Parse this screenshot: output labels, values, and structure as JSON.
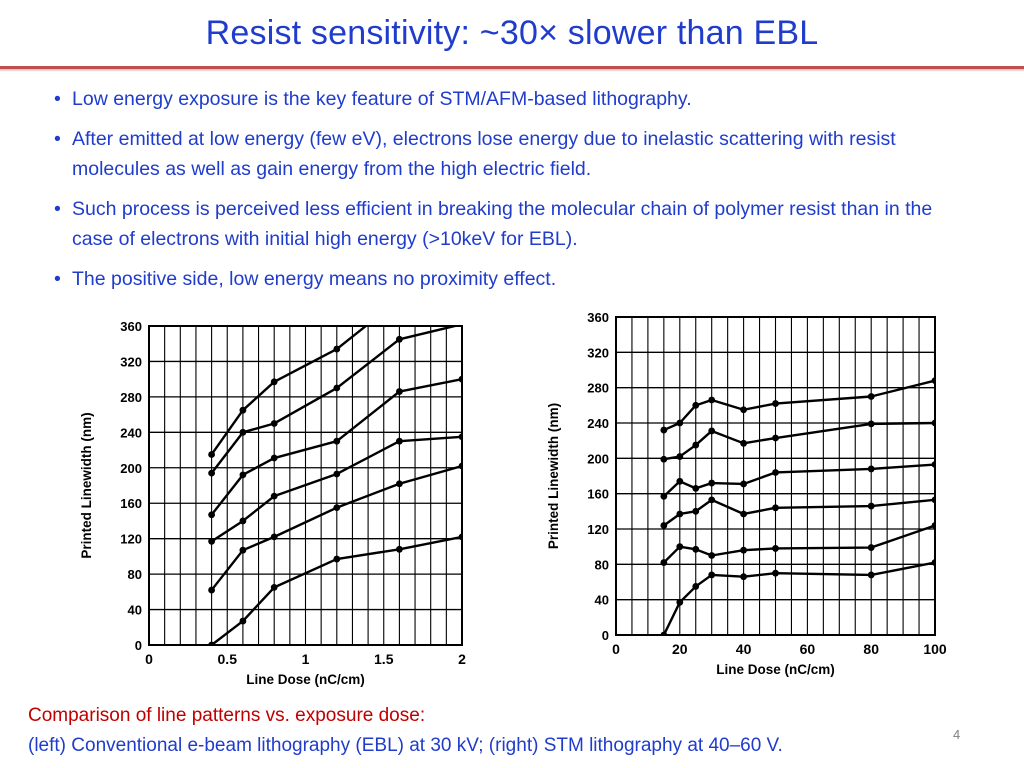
{
  "slide": {
    "title": "Resist sensitivity: ~30× slower than EBL",
    "page_number": "4",
    "accent_color": "#c0504d",
    "text_color": "#1f3ccc",
    "caption_color": "#c00000"
  },
  "bullets": [
    "Low energy exposure is the key feature of STM/AFM-based lithography.",
    "After emitted at low energy (few eV), electrons lose energy due to inelastic scattering with resist molecules as well as gain energy from the high electric field.",
    "Such process is perceived less efficient in breaking the molecular chain of polymer resist than in the case of electrons with initial high energy (>10keV for EBL).",
    "The positive side, low energy means no proximity effect."
  ],
  "caption": {
    "line1": "Comparison of line patterns vs. exposure dose:",
    "line2": "(left) Conventional e-beam lithography (EBL) at 30 kV; (right) STM lithography at 40–60 V."
  },
  "chart_data": [
    {
      "type": "line",
      "xlabel": "Line Dose (nC/cm)",
      "ylabel": "Printed Linewidth (nm)",
      "xlim": [
        0,
        2
      ],
      "ylim": [
        0,
        360
      ],
      "xticks": [
        0,
        0.5,
        1,
        1.5,
        2
      ],
      "xtick_labels": [
        "0",
        "0.5",
        "1",
        "1.5",
        "2"
      ],
      "yticks": [
        0,
        40,
        80,
        120,
        160,
        200,
        240,
        280,
        320,
        360
      ],
      "grid": true,
      "series": [
        {
          "x": [
            0.4,
            0.6,
            0.8,
            1.2,
            1.6,
            2.0
          ],
          "y": [
            0,
            27,
            65,
            97,
            108,
            122
          ]
        },
        {
          "x": [
            0.4,
            0.6,
            0.8,
            1.2,
            1.6,
            2.0
          ],
          "y": [
            62,
            107,
            122,
            155,
            182,
            202
          ]
        },
        {
          "x": [
            0.4,
            0.6,
            0.8,
            1.2,
            1.6,
            2.0
          ],
          "y": [
            117,
            140,
            168,
            193,
            230,
            235
          ]
        },
        {
          "x": [
            0.4,
            0.6,
            0.8,
            1.2,
            1.6,
            2.0
          ],
          "y": [
            147,
            192,
            211,
            230,
            286,
            300
          ]
        },
        {
          "x": [
            0.4,
            0.6,
            0.8,
            1.2,
            1.6,
            2.0
          ],
          "y": [
            194,
            240,
            250,
            290,
            345,
            362
          ]
        },
        {
          "x": [
            0.4,
            0.6,
            0.8,
            1.2,
            1.4
          ],
          "y": [
            215,
            265,
            297,
            334,
            362
          ]
        }
      ]
    },
    {
      "type": "line",
      "xlabel": "Line Dose (nC/cm)",
      "ylabel": "Printed Linewidth (nm)",
      "xlim": [
        0,
        100
      ],
      "ylim": [
        0,
        360
      ],
      "xticks": [
        0,
        20,
        40,
        60,
        80,
        100
      ],
      "xtick_labels": [
        "0",
        "20",
        "40",
        "60",
        "80",
        "100"
      ],
      "yticks": [
        0,
        40,
        80,
        120,
        160,
        200,
        240,
        280,
        320,
        360
      ],
      "grid": true,
      "series": [
        {
          "x": [
            15,
            20,
            25,
            30,
            40,
            50,
            80,
            100
          ],
          "y": [
            0,
            37,
            55,
            68,
            66,
            70,
            68,
            82
          ]
        },
        {
          "x": [
            15,
            20,
            25,
            30,
            40,
            50,
            80,
            100
          ],
          "y": [
            82,
            100,
            97,
            90,
            96,
            98,
            99,
            124
          ]
        },
        {
          "x": [
            15,
            20,
            25,
            30,
            40,
            50,
            80,
            100
          ],
          "y": [
            124,
            137,
            140,
            153,
            137,
            144,
            146,
            153
          ]
        },
        {
          "x": [
            15,
            20,
            25,
            30,
            40,
            50,
            80,
            100
          ],
          "y": [
            157,
            174,
            166,
            172,
            171,
            184,
            188,
            193
          ]
        },
        {
          "x": [
            15,
            20,
            25,
            30,
            40,
            50,
            80,
            100
          ],
          "y": [
            199,
            202,
            215,
            231,
            217,
            223,
            239,
            240
          ]
        },
        {
          "x": [
            15,
            20,
            25,
            30,
            40,
            50,
            80,
            100
          ],
          "y": [
            232,
            240,
            260,
            266,
            255,
            262,
            270,
            288
          ]
        }
      ]
    }
  ]
}
